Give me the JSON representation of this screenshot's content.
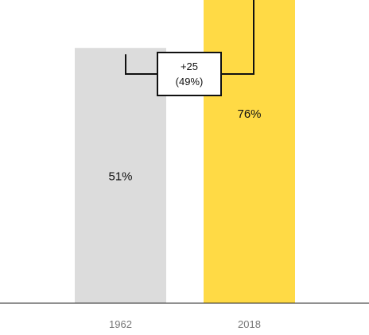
{
  "chart_data": {
    "type": "bar",
    "categories": [
      "1962",
      "2018"
    ],
    "values": [
      51,
      76
    ],
    "value_labels": [
      "51%",
      "76%"
    ],
    "colors": [
      "#dcdcdc",
      "#ffda45"
    ],
    "ylim": [
      0,
      100
    ],
    "grid": false,
    "annotation": {
      "line1": "+25",
      "line2": "(49%)"
    }
  }
}
